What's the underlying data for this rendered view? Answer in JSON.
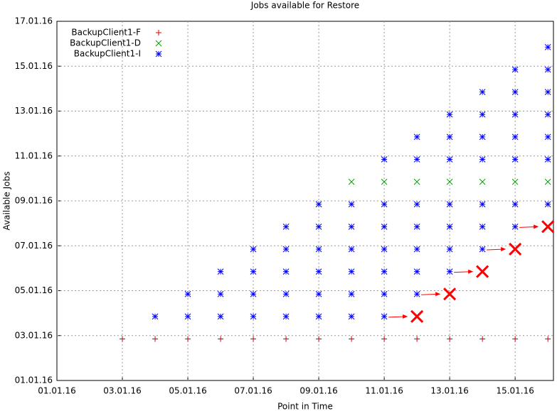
{
  "chart_data": {
    "type": "scatter",
    "title": "Jobs available for Restore",
    "x_label": "Point in Time",
    "y_label": "Available Jobs",
    "xlim": [
      1,
      16.17
    ],
    "ylim": [
      1,
      17
    ],
    "grid": true,
    "legend": "top-left",
    "xticks": [
      {
        "value": 1,
        "label": "01.01.16"
      },
      {
        "value": 3,
        "label": "03.01.16"
      },
      {
        "value": 5,
        "label": "05.01.16"
      },
      {
        "value": 7,
        "label": "07.01.16"
      },
      {
        "value": 9,
        "label": "09.01.16"
      },
      {
        "value": 11,
        "label": "11.01.16"
      },
      {
        "value": 13,
        "label": "13.01.16"
      },
      {
        "value": 15,
        "label": "15.01.16"
      }
    ],
    "yticks": [
      {
        "value": 1,
        "label": "01.01.16"
      },
      {
        "value": 3,
        "label": "03.01.16"
      },
      {
        "value": 5,
        "label": "05.01.16"
      },
      {
        "value": 7,
        "label": "07.01.16"
      },
      {
        "value": 9,
        "label": "09.01.16"
      },
      {
        "value": 11,
        "label": "11.01.16"
      },
      {
        "value": 13,
        "label": "13.01.16"
      },
      {
        "value": 15,
        "label": "15.01.16"
      },
      {
        "value": 17,
        "label": "17.01.16"
      }
    ],
    "series": [
      {
        "name": "BackupClient1-F",
        "color": "#e00000",
        "marker": "plus",
        "x": [
          3,
          4,
          5,
          6,
          7,
          8,
          9,
          10,
          11,
          12,
          13,
          14,
          15,
          16
        ],
        "values": [
          2.85,
          2.85,
          2.85,
          2.85,
          2.85,
          2.85,
          2.85,
          2.85,
          2.85,
          2.85,
          2.85,
          2.85,
          2.85,
          2.85
        ]
      },
      {
        "name": "BackupClient1-D",
        "color": "#00a000",
        "marker": "cross",
        "x": [
          10,
          11,
          12,
          13,
          14,
          15,
          16
        ],
        "values": [
          9.85,
          9.85,
          9.85,
          9.85,
          9.85,
          9.85,
          9.85
        ]
      },
      {
        "name": "BackupClient1-I",
        "color": "#0000ff",
        "marker": "star",
        "x": [
          4,
          5,
          5,
          6,
          6,
          6,
          7,
          7,
          7,
          7,
          8,
          8,
          8,
          8,
          8,
          9,
          9,
          9,
          9,
          9,
          9,
          10,
          10,
          10,
          10,
          10,
          10,
          11,
          11,
          11,
          11,
          11,
          11,
          11,
          12,
          12,
          12,
          12,
          12,
          12,
          12,
          13,
          13,
          13,
          13,
          13,
          13,
          13,
          14,
          14,
          14,
          14,
          14,
          14,
          14,
          15,
          15,
          15,
          15,
          15,
          15,
          15,
          16,
          16,
          16,
          16,
          16,
          16,
          16
        ],
        "values": [
          3.85,
          3.85,
          4.85,
          3.85,
          4.85,
          5.85,
          3.85,
          4.85,
          5.85,
          6.85,
          3.85,
          4.85,
          5.85,
          6.85,
          7.85,
          3.85,
          4.85,
          5.85,
          6.85,
          7.85,
          8.85,
          3.85,
          4.85,
          5.85,
          6.85,
          7.85,
          8.85,
          3.85,
          4.85,
          5.85,
          6.85,
          7.85,
          8.85,
          10.85,
          4.85,
          5.85,
          6.85,
          7.85,
          8.85,
          10.85,
          11.85,
          5.85,
          6.85,
          7.85,
          8.85,
          10.85,
          11.85,
          12.85,
          6.85,
          7.85,
          8.85,
          10.85,
          11.85,
          12.85,
          13.85,
          7.85,
          8.85,
          10.85,
          11.85,
          12.85,
          13.85,
          14.85,
          8.85,
          10.85,
          11.85,
          12.85,
          13.85,
          14.85,
          15.85
        ]
      }
    ],
    "highlight": {
      "color": "#ff0000",
      "x": [
        12,
        13,
        14,
        15,
        16
      ],
      "values": [
        3.85,
        4.85,
        5.85,
        6.85,
        7.85
      ]
    }
  }
}
